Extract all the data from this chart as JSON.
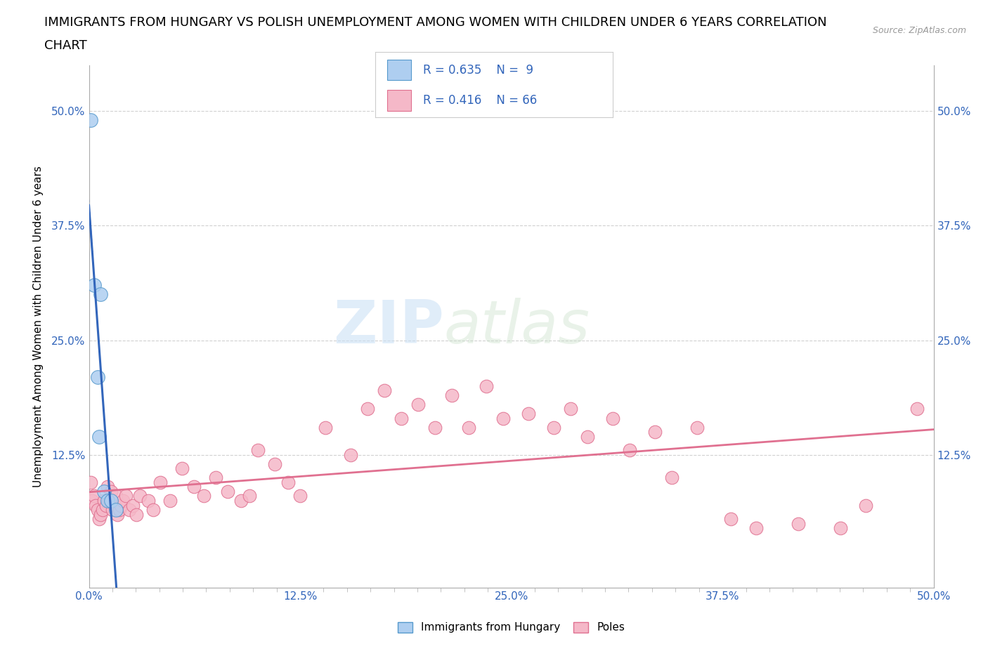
{
  "title_line1": "IMMIGRANTS FROM HUNGARY VS POLISH UNEMPLOYMENT AMONG WOMEN WITH CHILDREN UNDER 6 YEARS CORRELATION",
  "title_line2": "CHART",
  "source_text": "Source: ZipAtlas.com",
  "ylabel": "Unemployment Among Women with Children Under 6 years",
  "xlim": [
    0.0,
    0.5
  ],
  "ylim": [
    -0.02,
    0.55
  ],
  "xtick_labels": [
    "0.0%",
    "",
    "",
    "",
    "",
    "",
    "",
    "",
    "",
    "12.5%",
    "",
    "",
    "",
    "",
    "",
    "",
    "",
    "",
    "25.0%",
    "",
    "",
    "",
    "",
    "",
    "",
    "",
    "",
    "37.5%",
    "",
    "",
    "",
    "",
    "",
    "",
    "",
    "",
    "50.0%"
  ],
  "xtick_values": [
    0.0,
    0.0139,
    0.0278,
    0.0417,
    0.0556,
    0.0694,
    0.0833,
    0.0972,
    0.1111,
    0.125,
    0.1389,
    0.1528,
    0.1667,
    0.1806,
    0.1944,
    0.2083,
    0.2222,
    0.2361,
    0.25,
    0.2639,
    0.2778,
    0.2917,
    0.3056,
    0.3194,
    0.3333,
    0.3472,
    0.3611,
    0.375,
    0.3889,
    0.4028,
    0.4167,
    0.4306,
    0.4444,
    0.4583,
    0.4722,
    0.4861,
    0.5
  ],
  "xtick_major_values": [
    0.0,
    0.125,
    0.25,
    0.375,
    0.5
  ],
  "xtick_major_labels": [
    "0.0%",
    "12.5%",
    "25.0%",
    "37.5%",
    "50.0%"
  ],
  "ytick_values": [
    0.125,
    0.25,
    0.375,
    0.5
  ],
  "ytick_labels": [
    "12.5%",
    "25.0%",
    "37.5%",
    "50.0%"
  ],
  "hungary_color": "#aecef0",
  "hungary_edge_color": "#5599cc",
  "poles_color": "#f5b8c8",
  "poles_edge_color": "#e07090",
  "hungary_line_color": "#3366bb",
  "poles_line_color": "#e07090",
  "R_hungary": 0.635,
  "N_hungary": 9,
  "R_poles": 0.416,
  "N_poles": 66,
  "legend_R_color": "#3366bb",
  "background_color": "#ffffff",
  "grid_color": "#cccccc",
  "hungary_x": [
    0.001,
    0.003,
    0.005,
    0.006,
    0.007,
    0.009,
    0.011,
    0.013,
    0.016
  ],
  "hungary_y": [
    0.49,
    0.31,
    0.21,
    0.145,
    0.3,
    0.085,
    0.075,
    0.075,
    0.065
  ],
  "poles_x": [
    0.001,
    0.002,
    0.003,
    0.004,
    0.005,
    0.006,
    0.007,
    0.008,
    0.009,
    0.01,
    0.011,
    0.012,
    0.013,
    0.014,
    0.015,
    0.016,
    0.017,
    0.018,
    0.019,
    0.02,
    0.022,
    0.024,
    0.026,
    0.028,
    0.03,
    0.035,
    0.038,
    0.042,
    0.048,
    0.055,
    0.062,
    0.068,
    0.075,
    0.082,
    0.09,
    0.095,
    0.1,
    0.11,
    0.118,
    0.125,
    0.14,
    0.155,
    0.165,
    0.175,
    0.185,
    0.195,
    0.205,
    0.215,
    0.225,
    0.235,
    0.245,
    0.26,
    0.275,
    0.285,
    0.295,
    0.31,
    0.32,
    0.335,
    0.345,
    0.36,
    0.38,
    0.395,
    0.42,
    0.445,
    0.46,
    0.49
  ],
  "poles_y": [
    0.095,
    0.075,
    0.08,
    0.07,
    0.065,
    0.055,
    0.06,
    0.065,
    0.075,
    0.07,
    0.09,
    0.075,
    0.085,
    0.065,
    0.07,
    0.08,
    0.06,
    0.065,
    0.07,
    0.075,
    0.08,
    0.065,
    0.07,
    0.06,
    0.08,
    0.075,
    0.065,
    0.095,
    0.075,
    0.11,
    0.09,
    0.08,
    0.1,
    0.085,
    0.075,
    0.08,
    0.13,
    0.115,
    0.095,
    0.08,
    0.155,
    0.125,
    0.175,
    0.195,
    0.165,
    0.18,
    0.155,
    0.19,
    0.155,
    0.2,
    0.165,
    0.17,
    0.155,
    0.175,
    0.145,
    0.165,
    0.13,
    0.15,
    0.1,
    0.155,
    0.055,
    0.045,
    0.05,
    0.045,
    0.07,
    0.175
  ],
  "watermark_text1": "ZIP",
  "watermark_text2": "atlas",
  "title_fontsize": 13,
  "axis_label_fontsize": 11,
  "tick_fontsize": 11
}
